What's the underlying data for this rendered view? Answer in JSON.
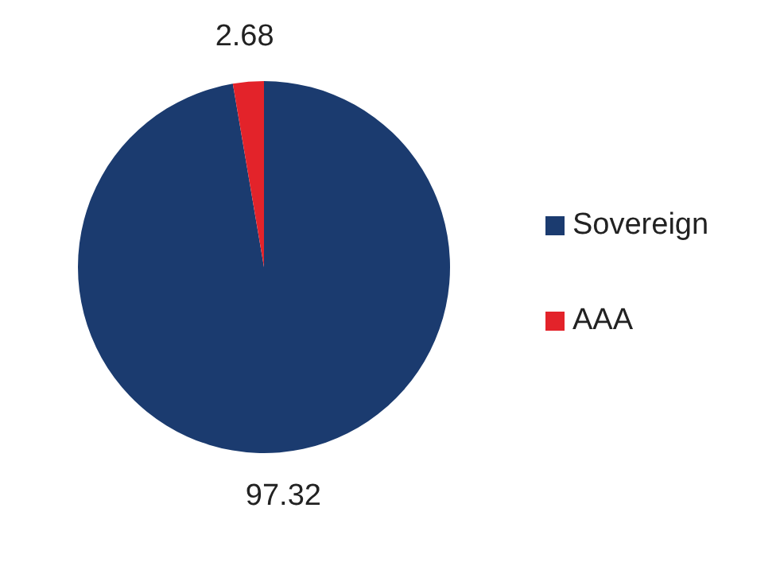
{
  "chart_data": {
    "type": "pie",
    "categories": [
      "Sovereign",
      "AAA"
    ],
    "values": [
      97.32,
      2.68
    ],
    "colors": [
      "#1b3b6f",
      "#e3232a"
    ],
    "data_labels": true,
    "legend": "right"
  }
}
